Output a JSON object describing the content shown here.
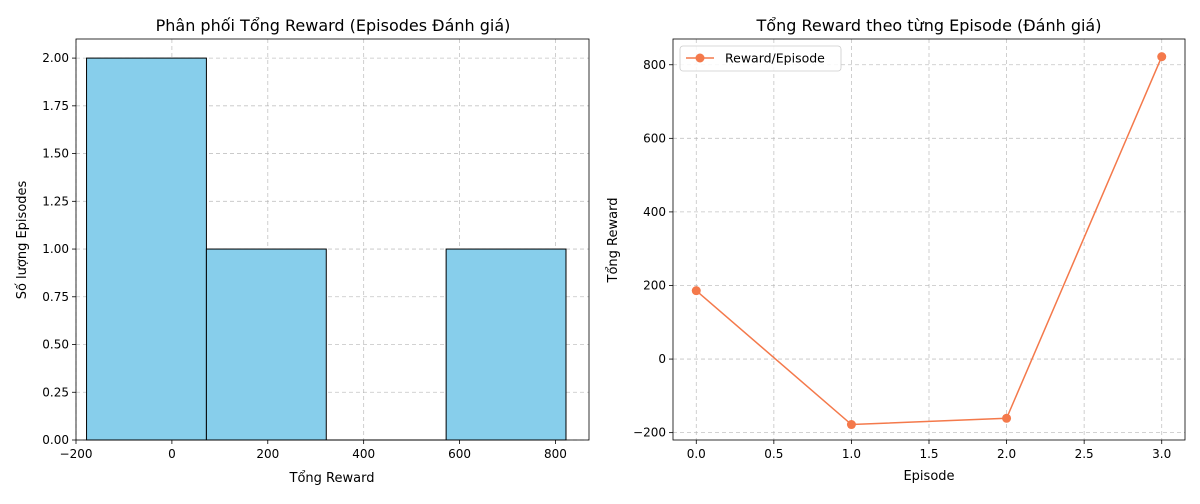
{
  "chart_data": [
    {
      "type": "bar",
      "subtype": "histogram",
      "title": "Phân phối Tổng Reward (Episodes Đánh giá)",
      "xlabel": "Tổng Reward",
      "ylabel": "Số lượng Episodes",
      "xlim": [
        -200,
        870
      ],
      "ylim": [
        0,
        2.1
      ],
      "xticks": [
        -200,
        0,
        200,
        400,
        600,
        800
      ],
      "xtick_labels": [
        "−200",
        "0",
        "200",
        "400",
        "600",
        "800"
      ],
      "yticks": [
        0,
        0.25,
        0.5,
        0.75,
        1.0,
        1.25,
        1.5,
        1.75,
        2.0
      ],
      "ytick_labels": [
        "0.00",
        "0.25",
        "0.50",
        "0.75",
        "1.00",
        "1.25",
        "1.50",
        "1.75",
        "2.00"
      ],
      "bins": [
        {
          "start": -178,
          "end": 72,
          "count": 2
        },
        {
          "start": 72,
          "end": 322,
          "count": 1
        },
        {
          "start": 322,
          "end": 572,
          "count": 0
        },
        {
          "start": 572,
          "end": 822,
          "count": 1
        }
      ],
      "bar_color": "#87ceeb",
      "edge_color": "#000000",
      "grid": true
    },
    {
      "type": "line",
      "title": "Tổng Reward theo từng Episode (Đánh giá)",
      "xlabel": "Episode",
      "ylabel": "Tổng Reward",
      "xlim": [
        -0.15,
        3.15
      ],
      "ylim": [
        -220,
        870
      ],
      "xticks": [
        0,
        0.5,
        1.0,
        1.5,
        2.0,
        2.5,
        3.0
      ],
      "xtick_labels": [
        "0.0",
        "0.5",
        "1.0",
        "1.5",
        "2.0",
        "2.5",
        "3.0"
      ],
      "yticks": [
        -200,
        0,
        200,
        400,
        600,
        800
      ],
      "ytick_labels": [
        "−200",
        "0",
        "200",
        "400",
        "600",
        "800"
      ],
      "series": [
        {
          "name": "Reward/Episode",
          "x": [
            0,
            1,
            2,
            3
          ],
          "values": [
            186,
            -178,
            -161,
            822
          ],
          "color": "#f4794b"
        }
      ],
      "legend": "top-left",
      "grid": true
    }
  ]
}
